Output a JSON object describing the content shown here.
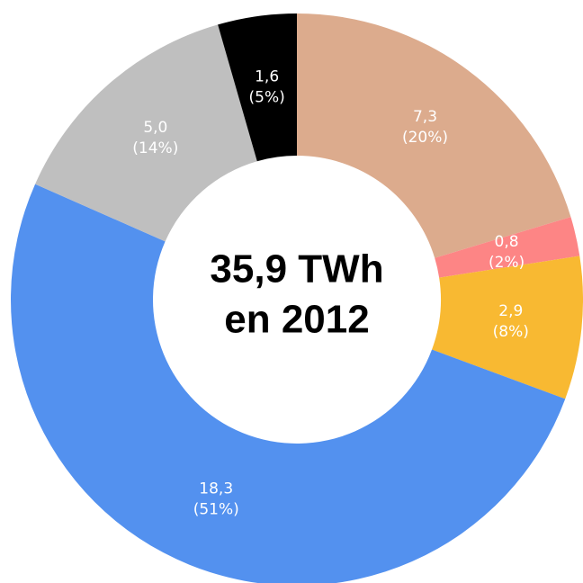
{
  "chart_data": {
    "type": "donut",
    "center_text": [
      "35,9 TWh",
      "en 2012"
    ],
    "values": [
      7.3,
      0.8,
      2.9,
      18.3,
      5.0,
      1.6
    ],
    "value_labels": [
      "7,3",
      "0,8",
      "2,9",
      "18,3",
      "5,0",
      "1,6"
    ],
    "percent_labels": [
      "(20%)",
      "(2%)",
      "(8%)",
      "(51%)",
      "(14%)",
      "(5%)"
    ],
    "colors": [
      "#dcab8d",
      "#fd8585",
      "#f8b932",
      "#5391ef",
      "#bfbfbf",
      "#000000"
    ]
  }
}
